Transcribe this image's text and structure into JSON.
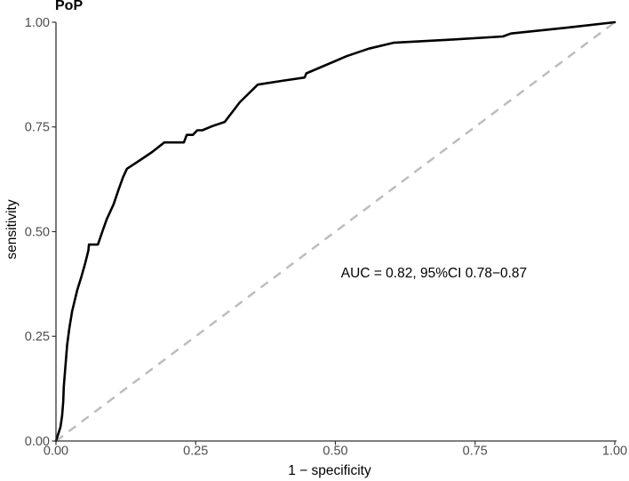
{
  "chart_data": {
    "type": "line",
    "title": "PoP",
    "xlabel": "1 − specificity",
    "ylabel": "sensitivity",
    "xlim": [
      0,
      1
    ],
    "ylim": [
      0,
      1
    ],
    "x_ticks": [
      "0.00",
      "0.25",
      "0.50",
      "0.75",
      "1.00"
    ],
    "y_ticks": [
      "0.00",
      "0.25",
      "0.50",
      "0.75",
      "1.00"
    ],
    "grid": false,
    "legend": "none",
    "annotation": {
      "text": "AUC = 0.82, 95%CI 0.78−0.87",
      "x": 0.51,
      "y": 0.4,
      "anchor": "start"
    },
    "auc": 0.82,
    "ci_low": 0.78,
    "ci_high": 0.87,
    "colors": {
      "curve": "#000000",
      "reference": "#bdbdbd",
      "axis": "#333333",
      "tick": "#333333",
      "tick_label": "#4d4d4d",
      "text": "#000000",
      "background": "#ffffff"
    },
    "series": [
      {
        "name": "chance reference line",
        "slug": "reference-diagonal-line",
        "style": "dashed",
        "color": "#bdbdbd",
        "width": 2.5,
        "points": [
          [
            0,
            0
          ],
          [
            1,
            1
          ]
        ]
      },
      {
        "name": "ROC curve (PoP)",
        "slug": "roc-curve-line",
        "style": "solid",
        "color": "#000000",
        "width": 2.6,
        "points": [
          [
            0.0,
            0.0
          ],
          [
            0.008,
            0.033
          ],
          [
            0.011,
            0.06
          ],
          [
            0.013,
            0.095
          ],
          [
            0.014,
            0.13
          ],
          [
            0.017,
            0.18
          ],
          [
            0.02,
            0.23
          ],
          [
            0.024,
            0.27
          ],
          [
            0.029,
            0.31
          ],
          [
            0.038,
            0.36
          ],
          [
            0.045,
            0.39
          ],
          [
            0.052,
            0.423
          ],
          [
            0.058,
            0.455
          ],
          [
            0.059,
            0.469
          ],
          [
            0.075,
            0.469
          ],
          [
            0.083,
            0.5
          ],
          [
            0.091,
            0.53
          ],
          [
            0.103,
            0.565
          ],
          [
            0.112,
            0.6
          ],
          [
            0.12,
            0.63
          ],
          [
            0.127,
            0.65
          ],
          [
            0.15,
            0.67
          ],
          [
            0.172,
            0.69
          ],
          [
            0.194,
            0.713
          ],
          [
            0.229,
            0.713
          ],
          [
            0.234,
            0.731
          ],
          [
            0.245,
            0.731
          ],
          [
            0.253,
            0.742
          ],
          [
            0.262,
            0.742
          ],
          [
            0.28,
            0.752
          ],
          [
            0.302,
            0.762
          ],
          [
            0.329,
            0.809
          ],
          [
            0.361,
            0.851
          ],
          [
            0.405,
            0.86
          ],
          [
            0.445,
            0.868
          ],
          [
            0.448,
            0.878
          ],
          [
            0.52,
            0.919
          ],
          [
            0.56,
            0.937
          ],
          [
            0.604,
            0.951
          ],
          [
            0.7,
            0.958
          ],
          [
            0.8,
            0.966
          ],
          [
            0.814,
            0.973
          ],
          [
            0.92,
            0.988
          ],
          [
            1.0,
            1.0
          ]
        ]
      }
    ]
  }
}
